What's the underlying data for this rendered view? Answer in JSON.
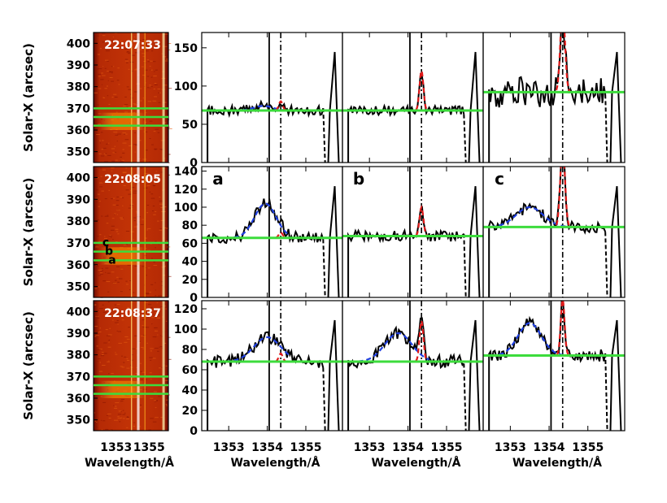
{
  "xlabel": "Wavelength/Å",
  "ylabel": "Solar-X (arcsec)",
  "image_y_ticks": [
    "400",
    "390",
    "380",
    "370",
    "360",
    "350"
  ],
  "image_x_ticks": [
    "1353",
    "1355"
  ],
  "spectrum_x_ticks": [
    "1353",
    "1354",
    "1355"
  ],
  "timestamps": [
    "22:07:33",
    "22:08:05",
    "22:08:37"
  ],
  "slit_letters": [
    "c",
    "b",
    "a"
  ],
  "panel_letters": [
    "a",
    "b",
    "c"
  ],
  "colors": {
    "observed": "#000000",
    "broad_fit": "#1f3fe0",
    "narrow_fit": "#e01a1a",
    "background_level": "#3cdc3c",
    "image_lines": "#3cdc3c",
    "image_timestamp": "#ffffff"
  },
  "chart_data": {
    "type": "line",
    "x_range": [
      1352.3,
      1355.95
    ],
    "vertical_lines": {
      "solid": 1354.05,
      "dash_dot": 1354.35,
      "dashed_right": 1355.5
    },
    "image_y_range": [
      345,
      405
    ],
    "image_slit_positions": [
      370,
      366,
      362
    ],
    "rows": [
      {
        "timestamp": "22:07:33",
        "y_ticks": [
          0,
          50,
          100,
          150
        ],
        "ylim": [
          0,
          170
        ],
        "panels": [
          {
            "letter": "",
            "background": 68,
            "broad": {
              "center": 1353.9,
              "amp": 6,
              "width": 0.25
            },
            "narrow": {
              "center": 1354.35,
              "amp": 12,
              "width": 0.05
            }
          },
          {
            "letter": "",
            "background": 68,
            "broad": null,
            "narrow": {
              "center": 1354.35,
              "amp": 52,
              "width": 0.05
            }
          },
          {
            "letter": "",
            "background": 92,
            "broad": null,
            "narrow": {
              "center": 1354.35,
              "amp": 110,
              "width": 0.06
            }
          }
        ]
      },
      {
        "timestamp": "22:08:05",
        "y_ticks": [
          0,
          20,
          40,
          60,
          80,
          100,
          120,
          140
        ],
        "ylim": [
          0,
          145
        ],
        "panels": [
          {
            "letter": "a",
            "background": 66,
            "broad": {
              "center": 1353.95,
              "amp": 38,
              "width": 0.28
            },
            "narrow": {
              "center": 1354.35,
              "amp": 6,
              "width": 0.05
            }
          },
          {
            "letter": "b",
            "background": 68,
            "broad": null,
            "narrow": {
              "center": 1354.35,
              "amp": 32,
              "width": 0.05
            }
          },
          {
            "letter": "c",
            "background": 78,
            "broad": {
              "center": 1353.5,
              "amp": 22,
              "width": 0.35
            },
            "narrow": {
              "center": 1354.35,
              "amp": 90,
              "width": 0.06
            }
          }
        ]
      },
      {
        "timestamp": "22:08:37",
        "y_ticks": [
          0,
          20,
          40,
          60,
          80,
          100,
          120
        ],
        "ylim": [
          0,
          128
        ],
        "panels": [
          {
            "letter": "",
            "background": 68,
            "broad": {
              "center": 1354.0,
              "amp": 24,
              "width": 0.35
            },
            "narrow": {
              "center": 1354.35,
              "amp": 8,
              "width": 0.05
            }
          },
          {
            "letter": "",
            "background": 68,
            "broad": {
              "center": 1353.75,
              "amp": 28,
              "width": 0.35
            },
            "narrow": {
              "center": 1354.35,
              "amp": 40,
              "width": 0.05
            }
          },
          {
            "letter": "",
            "background": 74,
            "broad": {
              "center": 1353.5,
              "amp": 32,
              "width": 0.3
            },
            "narrow": {
              "center": 1354.35,
              "amp": 55,
              "width": 0.05
            }
          }
        ]
      }
    ]
  }
}
